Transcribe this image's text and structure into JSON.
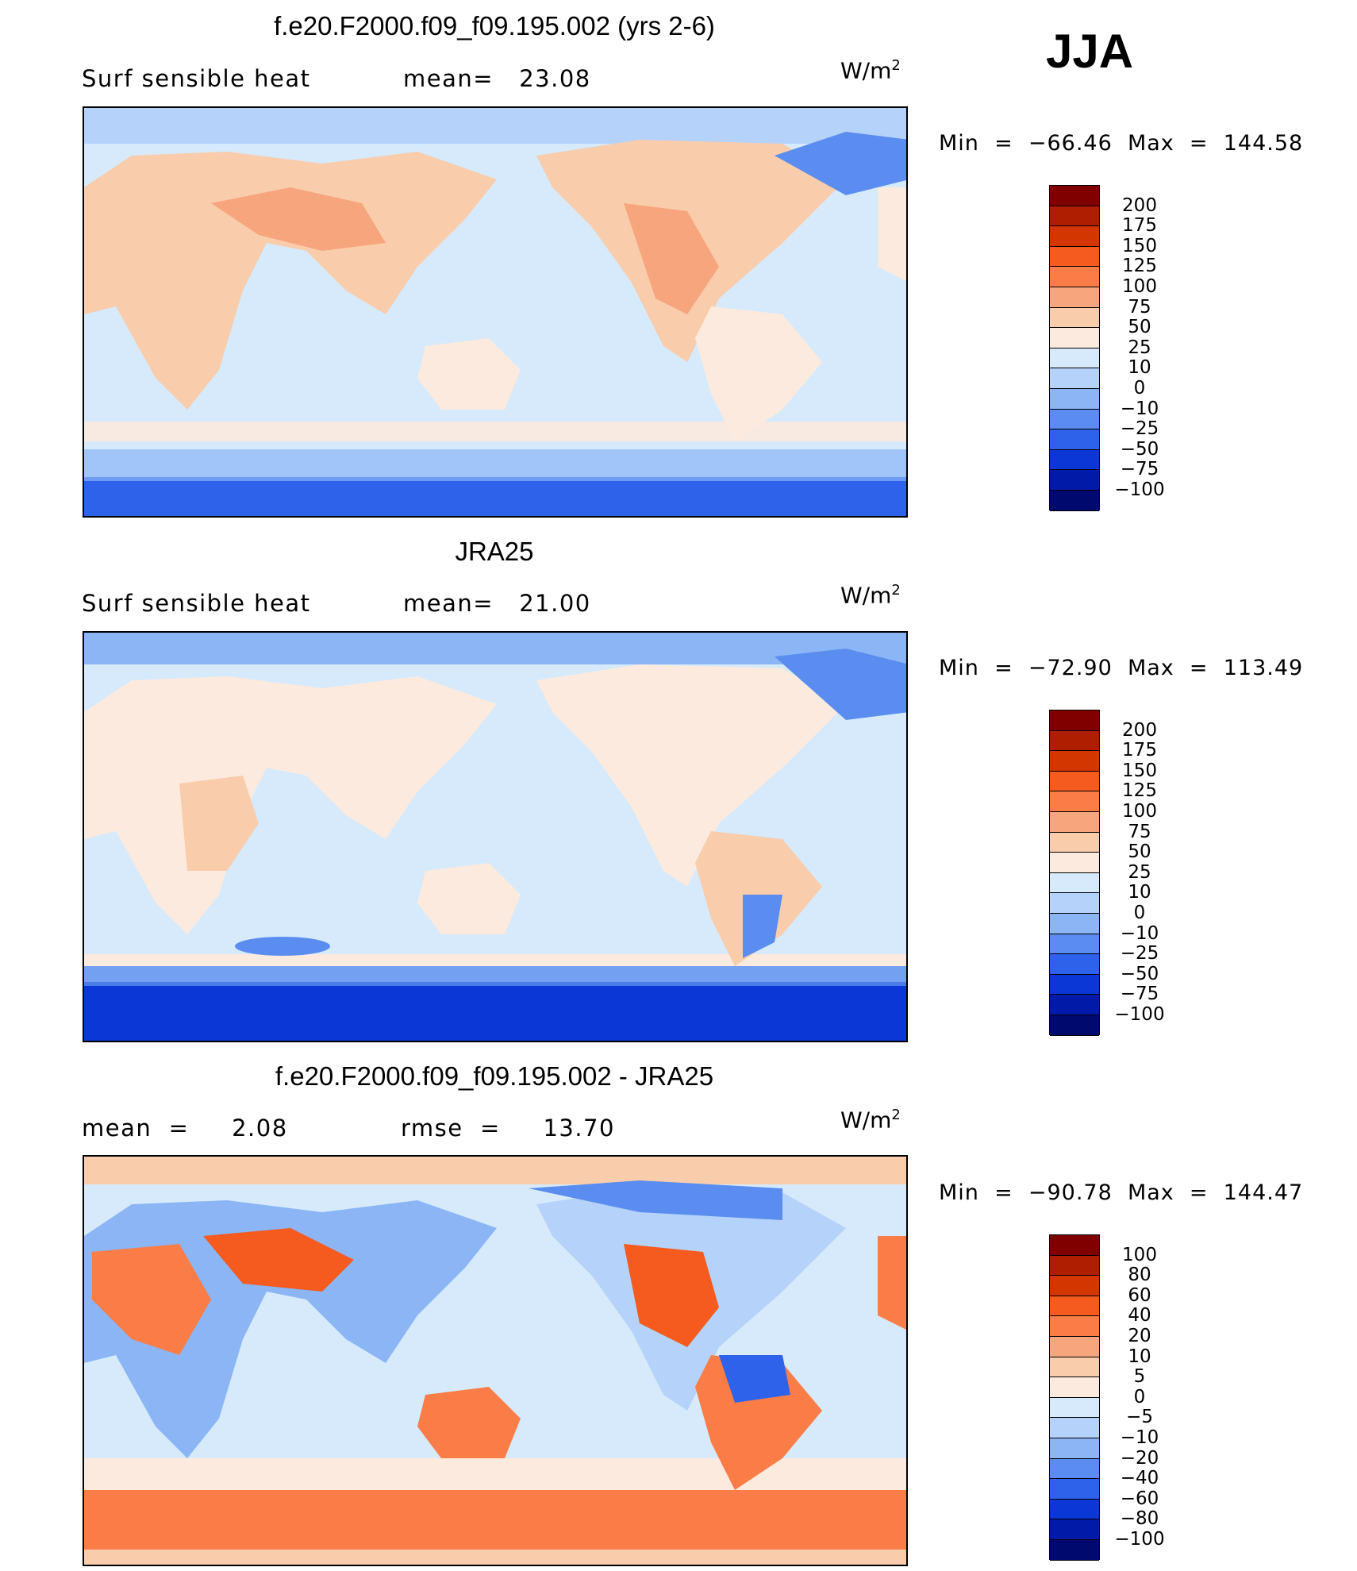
{
  "season": "JJA",
  "panels": [
    {
      "title": "f.e20.F2000.f09_f09.195.002 (yrs 2-6)",
      "subtitle_left": "Surf  sensible  heat",
      "subtitle_mid": "mean=   23.08",
      "units": "W/m",
      "units_sup": "2",
      "minmax": "Min  =  −66.46  Max  =  144.58",
      "colorbar_labels": [
        "200",
        "175",
        "150",
        "125",
        "100",
        "75",
        "50",
        "25",
        "10",
        "0",
        "−10",
        "−25",
        "−50",
        "−75",
        "−100"
      ]
    },
    {
      "title": "JRA25",
      "subtitle_left": "Surf  sensible  heat",
      "subtitle_mid": "mean=   21.00",
      "units": "W/m",
      "units_sup": "2",
      "minmax": "Min  =  −72.90  Max  =  113.49",
      "colorbar_labels": [
        "200",
        "175",
        "150",
        "125",
        "100",
        "75",
        "50",
        "25",
        "10",
        "0",
        "−10",
        "−25",
        "−50",
        "−75",
        "−100"
      ]
    },
    {
      "title": "f.e20.F2000.f09_f09.195.002 - JRA25",
      "subtitle_left": "mean  =     2.08",
      "subtitle_mid": "rmse  =     13.70",
      "units": "W/m",
      "units_sup": "2",
      "minmax": "Min  =  −90.78  Max  =  144.47",
      "colorbar_labels": [
        "100",
        "80",
        "60",
        "40",
        "20",
        "10",
        "5",
        "0",
        "−5",
        "−10",
        "−20",
        "−40",
        "−60",
        "−80",
        "−100"
      ]
    }
  ],
  "chart_data": [
    {
      "type": "heatmap",
      "title": "f.e20.F2000.f09_f09.195.002 (yrs 2-6)",
      "variable": "Surf sensible heat",
      "units": "W/m2",
      "mean": 23.08,
      "min": -66.46,
      "max": 144.58,
      "levels": [
        -100,
        -75,
        -50,
        -25,
        -10,
        0,
        10,
        25,
        50,
        75,
        100,
        125,
        150,
        175,
        200
      ]
    },
    {
      "type": "heatmap",
      "title": "JRA25",
      "variable": "Surf sensible heat",
      "units": "W/m2",
      "mean": 21.0,
      "min": -72.9,
      "max": 113.49,
      "levels": [
        -100,
        -75,
        -50,
        -25,
        -10,
        0,
        10,
        25,
        50,
        75,
        100,
        125,
        150,
        175,
        200
      ]
    },
    {
      "type": "heatmap",
      "title": "f.e20.F2000.f09_f09.195.002 - JRA25",
      "units": "W/m2",
      "mean": 2.08,
      "rmse": 13.7,
      "min": -90.78,
      "max": 144.47,
      "levels": [
        -100,
        -80,
        -60,
        -40,
        -20,
        -10,
        -5,
        0,
        5,
        10,
        20,
        40,
        60,
        80,
        100
      ]
    }
  ],
  "colorbar_colors": [
    "#800000",
    "#b01e00",
    "#d43600",
    "#f55a1e",
    "#fa7d48",
    "#f7a57c",
    "#f9ccac",
    "#fdeade",
    "#d6eafb",
    "#b4d2fa",
    "#8bb5f5",
    "#5a8def",
    "#2e62ea",
    "#0a37d6",
    "#011ba8",
    "#000a6e"
  ]
}
